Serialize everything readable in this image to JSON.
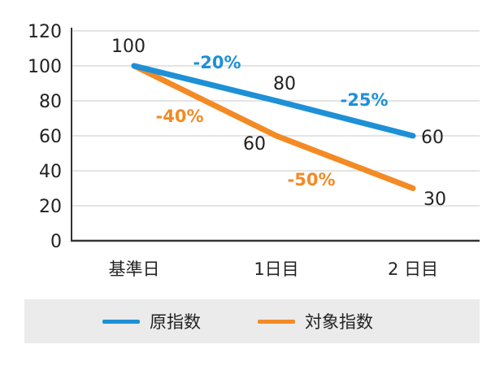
{
  "chart_data": {
    "type": "line",
    "categories": [
      "基準日",
      "1日目",
      "2 日目"
    ],
    "ylim": [
      0,
      120
    ],
    "yticks": [
      0,
      20,
      40,
      60,
      80,
      100,
      120
    ],
    "grid": true,
    "legend_position": "bottom",
    "series": [
      {
        "name": "原指数",
        "color": "#1e90d6",
        "values": [
          100,
          80,
          60
        ],
        "labels": [
          "100",
          "80",
          "60"
        ],
        "change_labels": [
          "-20%",
          "-25%"
        ]
      },
      {
        "name": "対象指数",
        "color": "#f38a24",
        "values": [
          100,
          60,
          30
        ],
        "labels": [
          "",
          "60",
          "30"
        ],
        "change_labels": [
          "-40%",
          "-50%"
        ]
      }
    ]
  }
}
